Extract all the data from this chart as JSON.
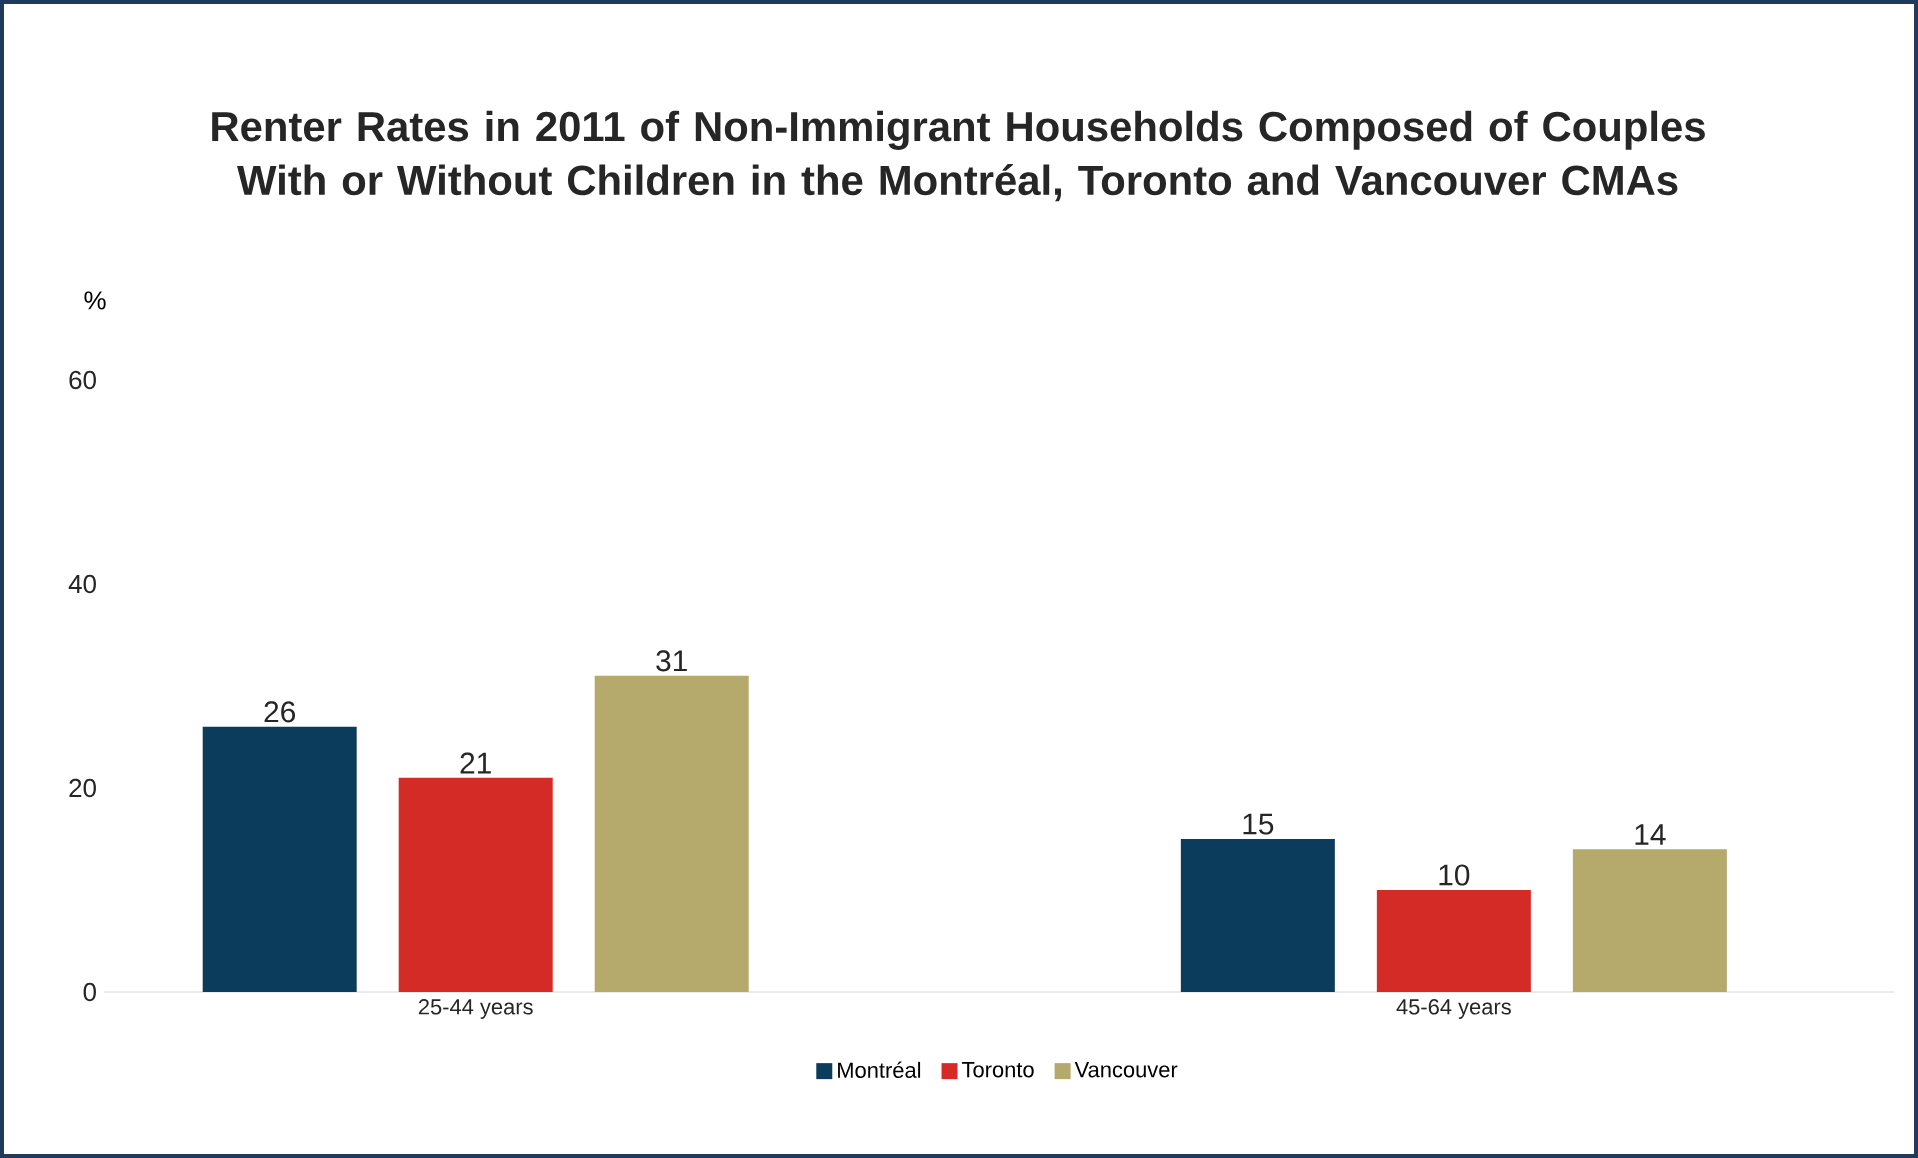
{
  "chart_data": {
    "type": "bar",
    "title": "Renter Rates in 2011 of Non-Immigrant Households Composed of Couples With or Without Children in the Montréal, Toronto and Vancouver CMAs",
    "ylabel": "%",
    "categories": [
      "25-44 years",
      "45-64 years"
    ],
    "series": [
      {
        "name": "Montréal",
        "color": "#0c3c5c",
        "values": [
          26,
          15
        ]
      },
      {
        "name": "Toronto",
        "color": "#d52b27",
        "values": [
          21,
          10
        ]
      },
      {
        "name": "Vancouver",
        "color": "#b5a96b",
        "values": [
          31,
          14
        ]
      }
    ],
    "ylim": [
      0,
      60
    ],
    "yticks": [
      0,
      20,
      40,
      60
    ],
    "grid": false,
    "legend": "bottom",
    "data_labels": true
  }
}
